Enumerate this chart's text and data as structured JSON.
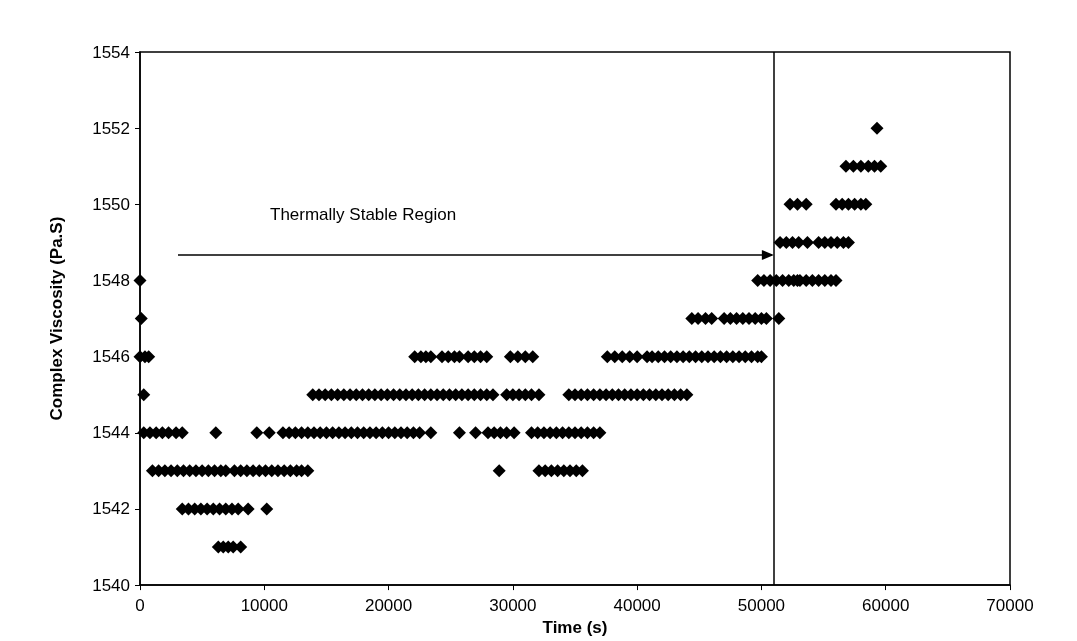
{
  "chart_data": {
    "type": "scatter",
    "xlabel": "Time (s)",
    "ylabel": "Complex Viscosity (Pa.S)",
    "xlim": [
      0,
      70000
    ],
    "xticks": [
      0,
      10000,
      20000,
      30000,
      40000,
      50000,
      60000,
      70000
    ],
    "ylim": [
      1540,
      1554
    ],
    "yticks": [
      1540,
      1542,
      1544,
      1546,
      1548,
      1550,
      1552,
      1554
    ],
    "grid": false,
    "marker": "diamond",
    "annotations": [
      "Thermally Stable Region"
    ],
    "ref_lines": [
      {
        "axis": "x",
        "value": 51000,
        "color": "#000000"
      }
    ],
    "series": [
      {
        "color": "#000000",
        "x": [
          0,
          100,
          0,
          400,
          700,
          300,
          300,
          800,
          1300,
          1800,
          2300,
          2900,
          3400,
          6100,
          9400,
          10400,
          11500,
          12000,
          12500,
          13000,
          13500,
          14000,
          14500,
          15000,
          15500,
          16000,
          16500,
          17000,
          17500,
          18000,
          18500,
          19000,
          19500,
          20000,
          20500,
          21000,
          21500,
          22000,
          22500,
          1000,
          1500,
          2000,
          2500,
          3000,
          3500,
          4000,
          4500,
          5000,
          5500,
          6000,
          6500,
          6900,
          7600,
          8100,
          8600,
          9100,
          9600,
          10100,
          10600,
          11100,
          11600,
          12100,
          12600,
          13000,
          13500,
          3400,
          3900,
          4400,
          4900,
          5400,
          5900,
          6400,
          6900,
          7400,
          7900,
          8700,
          10200,
          6300,
          6700,
          7100,
          7500,
          8100,
          13900,
          14400,
          14900,
          15400,
          15900,
          16400,
          16900,
          17400,
          17900,
          18400,
          18900,
          19400,
          19900,
          20400,
          20900,
          21400,
          21900,
          22400,
          22900,
          23400,
          23900,
          24400,
          24900,
          25400,
          25900,
          26400,
          26900,
          27400,
          27900,
          28400,
          29500,
          30000,
          30500,
          31000,
          31500,
          32100,
          34500,
          35000,
          35500,
          36000,
          36500,
          37000,
          37500,
          38000,
          38500,
          39000,
          39500,
          40000,
          40500,
          41000,
          41500,
          42000,
          42500,
          43000,
          43500,
          44000,
          23400,
          25700,
          27000,
          28000,
          28500,
          29000,
          29500,
          30100,
          31500,
          32000,
          32500,
          33000,
          33500,
          34000,
          34500,
          35000,
          35500,
          36000,
          36500,
          37000,
          28900,
          32100,
          32600,
          33100,
          33600,
          34100,
          34600,
          35100,
          35600,
          22100,
          22600,
          23000,
          23400,
          24300,
          24800,
          25300,
          25700,
          26400,
          26900,
          27400,
          27900,
          29800,
          30400,
          31000,
          31600,
          37600,
          38200,
          38800,
          39400,
          40000,
          40800,
          41200,
          41700,
          42200,
          42700,
          43200,
          43700,
          44200,
          44700,
          45200,
          45700,
          46200,
          46700,
          47200,
          47700,
          48200,
          48700,
          49200,
          49700,
          50000,
          44400,
          44900,
          45500,
          46000,
          47000,
          47500,
          48000,
          48500,
          49000,
          49500,
          50000,
          50400,
          51400,
          49700,
          50200,
          50700,
          51200,
          51700,
          52200,
          52600,
          52900,
          53100,
          53600,
          54100,
          54600,
          55100,
          55600,
          56000,
          51500,
          52000,
          52500,
          53000,
          53700,
          54600,
          55100,
          55600,
          56100,
          56600,
          57000,
          52300,
          52900,
          53600,
          56000,
          56500,
          57000,
          57500,
          58000,
          58400,
          56800,
          57400,
          58000,
          58600,
          59100,
          59600,
          59300
        ],
        "values": [
          1548,
          1547,
          1546,
          1546,
          1546,
          1545,
          1544,
          1544,
          1544,
          1544,
          1544,
          1544,
          1544,
          1544,
          1544,
          1544,
          1544,
          1544,
          1544,
          1544,
          1544,
          1544,
          1544,
          1544,
          1544,
          1544,
          1544,
          1544,
          1544,
          1544,
          1544,
          1544,
          1544,
          1544,
          1544,
          1544,
          1544,
          1544,
          1544,
          1543,
          1543,
          1543,
          1543,
          1543,
          1543,
          1543,
          1543,
          1543,
          1543,
          1543,
          1543,
          1543,
          1543,
          1543,
          1543,
          1543,
          1543,
          1543,
          1543,
          1543,
          1543,
          1543,
          1543,
          1543,
          1543,
          1542,
          1542,
          1542,
          1542,
          1542,
          1542,
          1542,
          1542,
          1542,
          1542,
          1542,
          1542,
          1541,
          1541,
          1541,
          1541,
          1541,
          1545,
          1545,
          1545,
          1545,
          1545,
          1545,
          1545,
          1545,
          1545,
          1545,
          1545,
          1545,
          1545,
          1545,
          1545,
          1545,
          1545,
          1545,
          1545,
          1545,
          1545,
          1545,
          1545,
          1545,
          1545,
          1545,
          1545,
          1545,
          1545,
          1545,
          1545,
          1545,
          1545,
          1545,
          1545,
          1545,
          1545,
          1545,
          1545,
          1545,
          1545,
          1545,
          1545,
          1545,
          1545,
          1545,
          1545,
          1545,
          1545,
          1545,
          1545,
          1545,
          1545,
          1545,
          1545,
          1545,
          1544,
          1544,
          1544,
          1544,
          1544,
          1544,
          1544,
          1544,
          1544,
          1544,
          1544,
          1544,
          1544,
          1544,
          1544,
          1544,
          1544,
          1544,
          1544,
          1544,
          1543,
          1543,
          1543,
          1543,
          1543,
          1543,
          1543,
          1543,
          1543,
          1546,
          1546,
          1546,
          1546,
          1546,
          1546,
          1546,
          1546,
          1546,
          1546,
          1546,
          1546,
          1546,
          1546,
          1546,
          1546,
          1546,
          1546,
          1546,
          1546,
          1546,
          1546,
          1546,
          1546,
          1546,
          1546,
          1546,
          1546,
          1546,
          1546,
          1546,
          1546,
          1546,
          1546,
          1546,
          1546,
          1546,
          1546,
          1546,
          1546,
          1546,
          1547,
          1547,
          1547,
          1547,
          1547,
          1547,
          1547,
          1547,
          1547,
          1547,
          1547,
          1547,
          1547,
          1548,
          1548,
          1548,
          1548,
          1548,
          1548,
          1548,
          1548,
          1548,
          1548,
          1548,
          1548,
          1548,
          1548,
          1548,
          1549,
          1549,
          1549,
          1549,
          1549,
          1549,
          1549,
          1549,
          1549,
          1549,
          1549,
          1550,
          1550,
          1550,
          1550,
          1550,
          1550,
          1550,
          1550,
          1550,
          1551,
          1551,
          1551,
          1551,
          1551,
          1551,
          1552
        ]
      }
    ]
  }
}
